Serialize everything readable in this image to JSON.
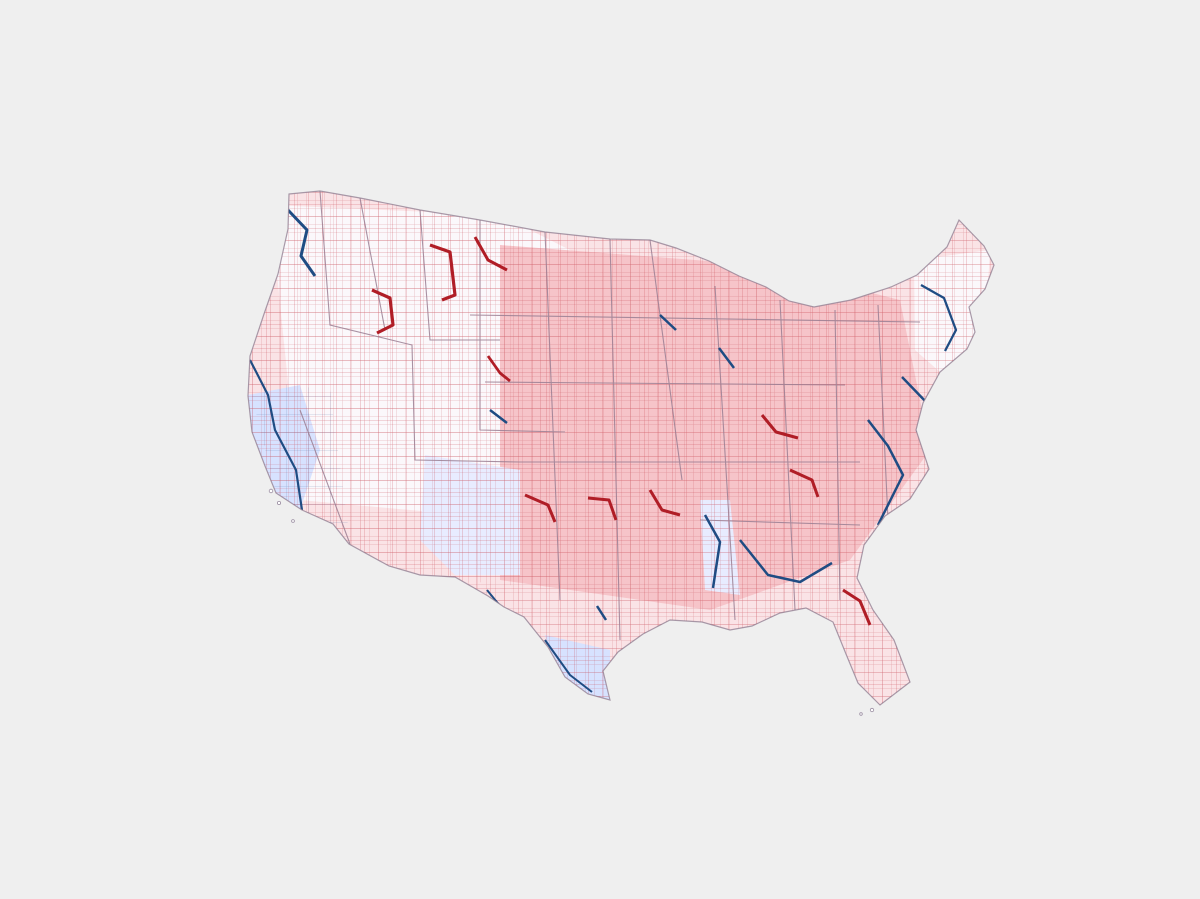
{
  "page": {
    "background": "#efefef"
  },
  "map": {
    "kind": "choropleth-county-map",
    "region": "contiguous-united-states",
    "colors": {
      "strong_republican_fill": "#f6c4c9",
      "mild_republican_fill": "#fae3e6",
      "neutral_fill": "#fbf8fb",
      "mild_democrat_fill": "#e8ecff",
      "strong_democrat_fill": "#d7e2ff",
      "republican_outline": "#b01d26",
      "democrat_outline": "#1f4c83",
      "state_border": "#9b7f93"
    }
  }
}
